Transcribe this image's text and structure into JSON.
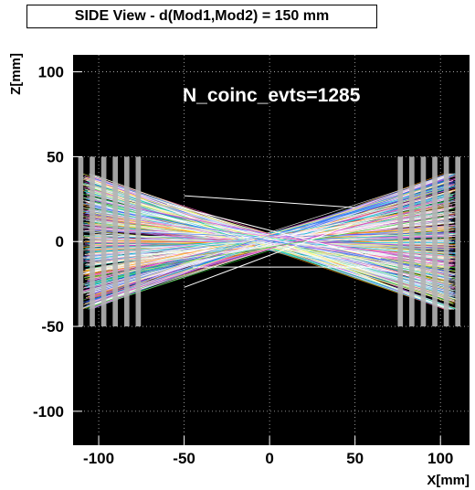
{
  "chart_data": {
    "type": "line",
    "title": "SIDE View - d(Mod1,Mod2) = 150 mm",
    "xlabel": "X[mm]",
    "ylabel": "Z[mm]",
    "xlim": [
      -115,
      117
    ],
    "ylim": [
      -120,
      110
    ],
    "xticks": [
      -100,
      -50,
      0,
      50,
      100
    ],
    "yticks": [
      -100,
      -50,
      0,
      50,
      100
    ],
    "grid": true,
    "background": "#000000",
    "annotation": "N_coinc_evts=1285",
    "detector_modules": [
      {
        "name": "Mod1",
        "x_range": [
          -112,
          -75
        ],
        "z_range": [
          -50,
          50
        ],
        "layers": 6
      },
      {
        "name": "Mod2",
        "x_range": [
          75,
          112
        ],
        "z_range": [
          -50,
          50
        ],
        "layers": 6
      }
    ],
    "coincidence_events": 1285,
    "outlier_tracks": [
      {
        "x": [
          -50,
          50
        ],
        "z": [
          27,
          20
        ]
      },
      {
        "x": [
          -50,
          48
        ],
        "z": [
          -27,
          10
        ]
      },
      {
        "x": [
          -45,
          60
        ],
        "z": [
          -15,
          -15
        ]
      },
      {
        "x": [
          -60,
          65
        ],
        "z": [
          22,
          -10
        ]
      }
    ],
    "colors": {
      "tracks": [
        "#ffffff",
        "#ffffff",
        "#ffffff",
        "#e6e6e6",
        "#ff66cc",
        "#33cc33",
        "#3366ff",
        "#00cccc",
        "#cc33cc",
        "#ff9900",
        "#99ccff",
        "#ffff66"
      ],
      "module_strip": "#b4b4b4",
      "grid": "#bbbbbb"
    }
  }
}
